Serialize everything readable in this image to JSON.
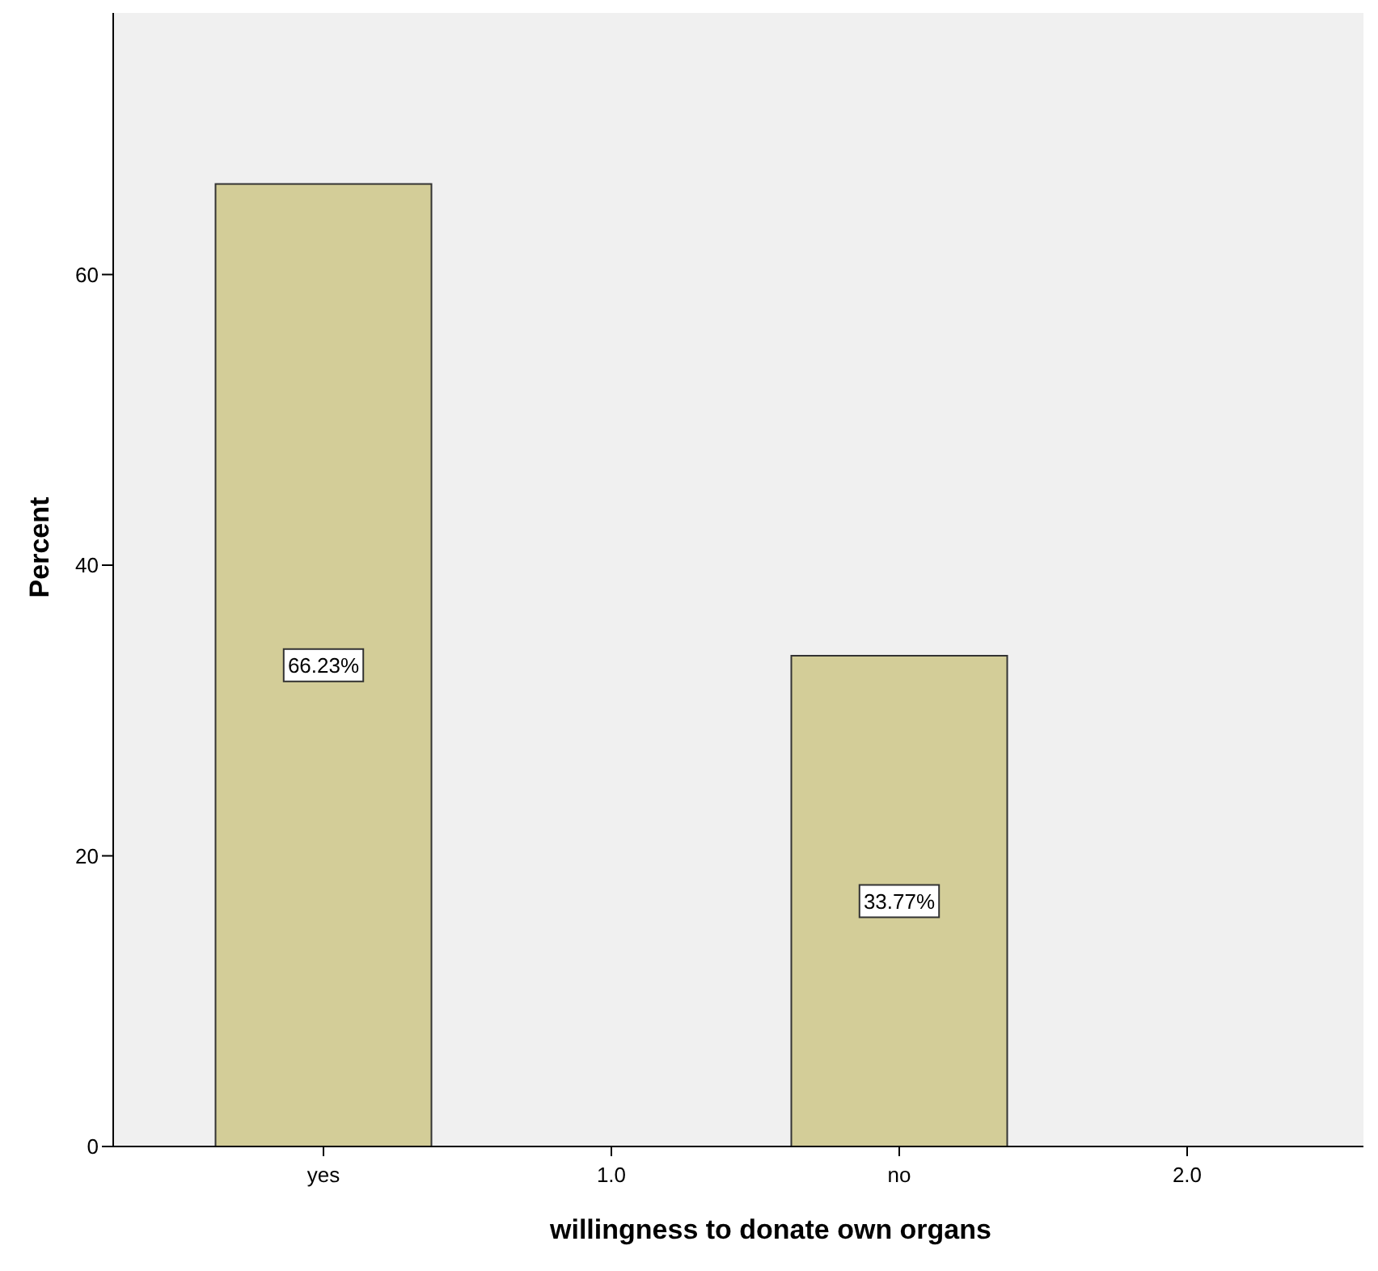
{
  "chart_data": {
    "type": "bar",
    "xlabel": "willingness to donate own organs",
    "ylabel": "Percent",
    "categories": [
      "yes",
      "1.0",
      "no",
      "2.0"
    ],
    "values": [
      66.23,
      null,
      33.77,
      null
    ],
    "value_labels": [
      "66.23%",
      null,
      "33.77%",
      null
    ],
    "color": "#d3cd98",
    "ylim": [
      0,
      78
    ],
    "yticks": [
      0,
      20,
      40,
      60
    ],
    "grid": false
  }
}
